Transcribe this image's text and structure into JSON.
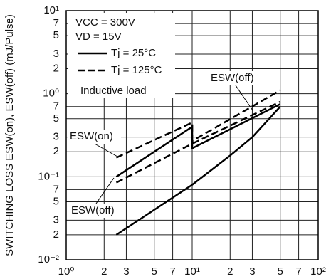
{
  "chart_data": {
    "type": "line",
    "y_label": "SWITCHING LOSS  ESW(on), ESW(off) (mJ/Pulse)",
    "x_log": true,
    "y_log": true,
    "grid": true,
    "xlim": [
      1,
      100
    ],
    "ylim": [
      0.01,
      10
    ],
    "xticks": [
      {
        "value": 1,
        "label": "10⁰"
      },
      2,
      3,
      5,
      7,
      {
        "value": 10,
        "label": "10¹"
      },
      {
        "value": 20,
        "label": "2"
      },
      {
        "value": 30,
        "label": "3"
      },
      {
        "value": 50,
        "label": "5"
      },
      {
        "value": 70,
        "label": "7"
      },
      {
        "value": 100,
        "label": "10²"
      }
    ],
    "yticks": [
      {
        "value": 0.01,
        "label": "10⁻²"
      },
      {
        "value": 0.02,
        "label": "2"
      },
      {
        "value": 0.03,
        "label": "3"
      },
      {
        "value": 0.05,
        "label": "5"
      },
      {
        "value": 0.07,
        "label": "7"
      },
      {
        "value": 0.1,
        "label": "10⁻¹"
      },
      {
        "value": 0.2,
        "label": "2"
      },
      {
        "value": 0.3,
        "label": "3"
      },
      {
        "value": 0.5,
        "label": "5"
      },
      {
        "value": 0.7,
        "label": "7"
      },
      {
        "value": 1,
        "label": "10⁰"
      },
      2,
      3,
      5,
      7,
      {
        "value": 10,
        "label": "10¹"
      }
    ],
    "conditions": [
      "VCC = 300V",
      "VD = 15V",
      "Inductive load"
    ],
    "legend": [
      {
        "label": "Tj = 25°C",
        "dashed": false
      },
      {
        "label": "Tj = 125°C",
        "dashed": true
      }
    ],
    "annotations": [
      "ESW(off)",
      "ESW(on)",
      "ESW(off)"
    ],
    "series": [
      {
        "color": "#000000",
        "dashed": false,
        "x": [
          2.5,
          10,
          10,
          50
        ],
        "values": [
          0.1,
          0.4,
          0.22,
          0.75
        ]
      },
      {
        "color": "#000000",
        "dashed": true,
        "x": [
          2.5,
          10,
          10,
          50
        ],
        "values": [
          0.17,
          0.45,
          0.27,
          1.1
        ]
      },
      {
        "color": "#000000",
        "dashed": false,
        "x": [
          2.5,
          5,
          10,
          20,
          30,
          50
        ],
        "values": [
          0.02,
          0.04,
          0.08,
          0.18,
          0.3,
          0.7
        ]
      },
      {
        "color": "#000000",
        "dashed": true,
        "x": [
          2.5,
          10,
          50
        ],
        "values": [
          0.085,
          0.25,
          0.8
        ]
      }
    ]
  }
}
